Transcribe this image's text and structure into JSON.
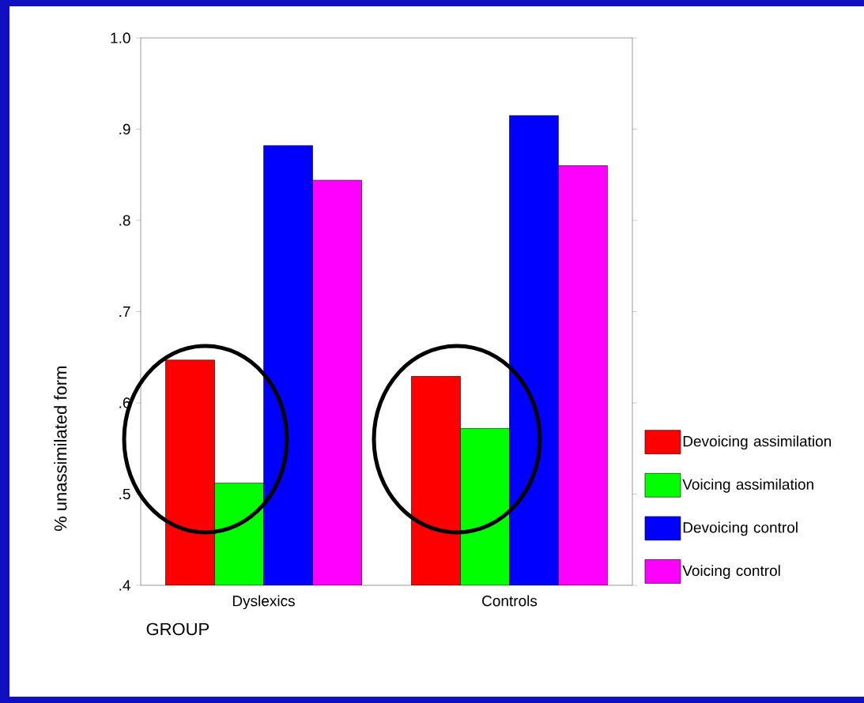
{
  "chart_data": {
    "type": "bar",
    "categories": [
      "Dyslexics",
      "Controls"
    ],
    "xlabel": "GROUP",
    "ylabel": "% unassimilated form",
    "series": [
      {
        "name": "Devoicing assimilation",
        "color": "#ff0000",
        "values": [
          0.647,
          0.629
        ]
      },
      {
        "name": "Voicing assimilation",
        "color": "#00ff00",
        "values": [
          0.512,
          0.572
        ]
      },
      {
        "name": "Devoicing control",
        "color": "#0000ff",
        "values": [
          0.882,
          0.915
        ]
      },
      {
        "name": "Voicing control",
        "color": "#ff00ff",
        "values": [
          0.844,
          0.86
        ]
      }
    ],
    "ylim": [
      0.4,
      1.0
    ],
    "yticks": [
      {
        "value": 0.4,
        "label": ".4"
      },
      {
        "value": 0.5,
        "label": ".5"
      },
      {
        "value": 0.6,
        "label": ".6"
      },
      {
        "value": 0.7,
        "label": ".7"
      },
      {
        "value": 0.8,
        "label": ".8"
      },
      {
        "value": 0.9,
        "label": ".9"
      },
      {
        "value": 1.0,
        "label": "1.0"
      }
    ],
    "legend": "right",
    "grid": false
  }
}
